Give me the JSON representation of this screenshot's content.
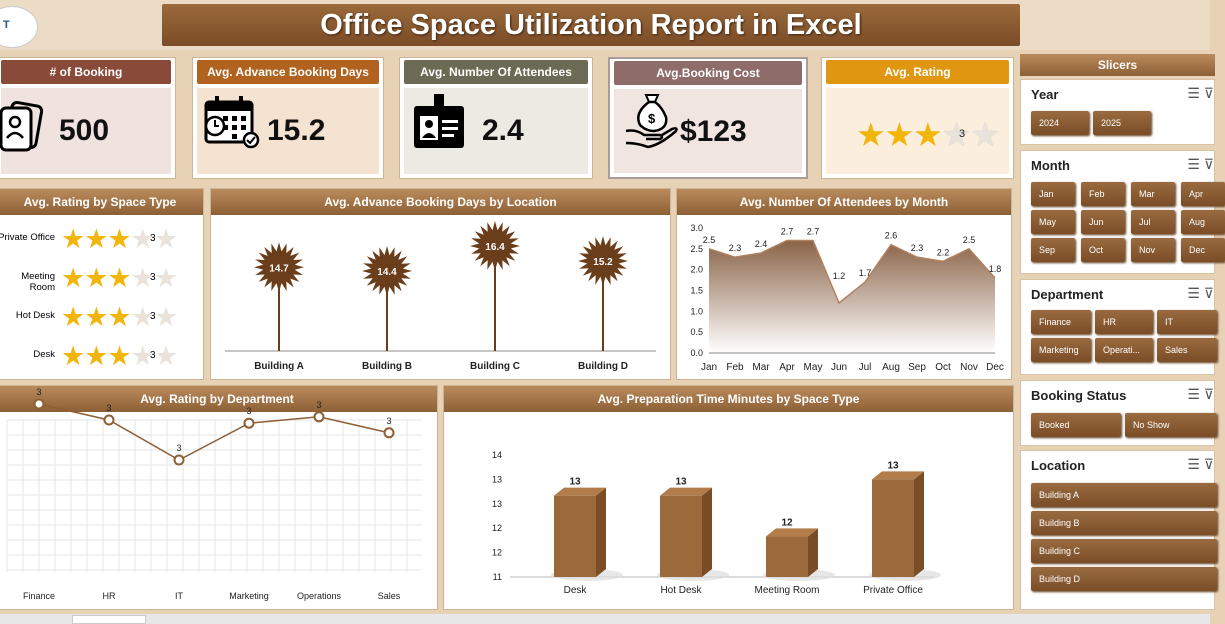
{
  "title": "Office Space Utilization Report in Excel",
  "logo_text": "T",
  "kpis": [
    {
      "label": "# of Booking",
      "value": "500",
      "color": "#8a4a3a",
      "icon": "id-cards-icon"
    },
    {
      "label": "Avg. Advance Booking Days",
      "value": "15.2",
      "color": "#b1621f",
      "icon": "calendar-icon"
    },
    {
      "label": "Avg. Number Of Attendees",
      "value": "2.4",
      "color": "#6b6b55",
      "icon": "id-badge-icon"
    },
    {
      "label": "Avg.Booking Cost",
      "value": "$123",
      "color": "#8d6c6a",
      "icon": "money-hand-icon"
    },
    {
      "label": "Avg. Rating",
      "value": "3",
      "color": "#e19612",
      "stars": 3
    }
  ],
  "rating_by_space": {
    "title": "Avg. Rating by Space Type",
    "rows": [
      {
        "label": "Private Office",
        "value": "3",
        "stars": 3
      },
      {
        "label": "Meeting Room",
        "value": "3",
        "stars": 3
      },
      {
        "label": "Hot Desk",
        "value": "3",
        "stars": 3
      },
      {
        "label": "Desk",
        "value": "3",
        "stars": 3
      }
    ]
  },
  "chart_data": [
    {
      "type": "bar",
      "title": "Avg. Advance Booking Days by Location",
      "categories": [
        "Building A",
        "Building B",
        "Building C",
        "Building D"
      ],
      "values": [
        14.7,
        14.4,
        16.4,
        15.2
      ],
      "labels": [
        "14.7",
        "14.4",
        "16.4",
        "15.2"
      ]
    },
    {
      "type": "area",
      "title": "Avg. Number Of Attendees by Month",
      "categories": [
        "Jan",
        "Feb",
        "Mar",
        "Apr",
        "May",
        "Jun",
        "Jul",
        "Aug",
        "Sep",
        "Oct",
        "Nov",
        "Dec"
      ],
      "values": [
        2.5,
        2.3,
        2.4,
        2.7,
        2.7,
        1.2,
        1.7,
        2.6,
        2.3,
        2.2,
        2.5,
        1.8
      ],
      "labels": [
        "2.5",
        "2.3",
        "2.4",
        "2.7",
        "2.7",
        "1.2",
        "1.7",
        "2.6",
        "2.3",
        "2.2",
        "2.5",
        "1.8"
      ],
      "yticks": [
        "0.0",
        "0.5",
        "1.0",
        "1.5",
        "2.0",
        "2.5",
        "3.0"
      ],
      "ylim": [
        0,
        3
      ]
    },
    {
      "type": "line",
      "title": "Avg. Rating by Department",
      "categories": [
        "Finance",
        "HR",
        "IT",
        "Marketing",
        "Operations",
        "Sales"
      ],
      "values": [
        3.3,
        3.2,
        2.95,
        3.18,
        3.22,
        3.12
      ],
      "labels": [
        "3",
        "3",
        "3",
        "3",
        "3",
        "3"
      ],
      "grid": true
    },
    {
      "type": "bar",
      "title": "Avg. Preparation Time Minutes by Space Type",
      "categories": [
        "Desk",
        "Hot Desk",
        "Meeting Room",
        "Private Office"
      ],
      "values": [
        13,
        13,
        12,
        13.4
      ],
      "labels": [
        "13",
        "13",
        "12",
        "13"
      ],
      "yticks": [
        "11",
        "12",
        "12",
        "13",
        "13",
        "14"
      ],
      "ylim": [
        11,
        14
      ]
    }
  ],
  "slicers": {
    "title": "Slicers",
    "groups": [
      {
        "title": "Year",
        "items": [
          "2024",
          "2025"
        ]
      },
      {
        "title": "Month",
        "items": [
          "Jan",
          "Feb",
          "Mar",
          "Apr",
          "May",
          "Jun",
          "Jul",
          "Aug",
          "Sep",
          "Oct",
          "Nov",
          "Dec"
        ]
      },
      {
        "title": "Department",
        "items": [
          "Finance",
          "HR",
          "IT",
          "Marketing",
          "Operati...",
          "Sales"
        ]
      },
      {
        "title": "Booking Status",
        "items": [
          "Booked",
          "No Show"
        ]
      },
      {
        "title": "Location",
        "items": [
          "Building A",
          "Building B",
          "Building C",
          "Building D"
        ]
      }
    ]
  },
  "colors": {
    "accent": "#8d5f35",
    "background": "#e8d2b6",
    "star": "#f2b50a"
  }
}
